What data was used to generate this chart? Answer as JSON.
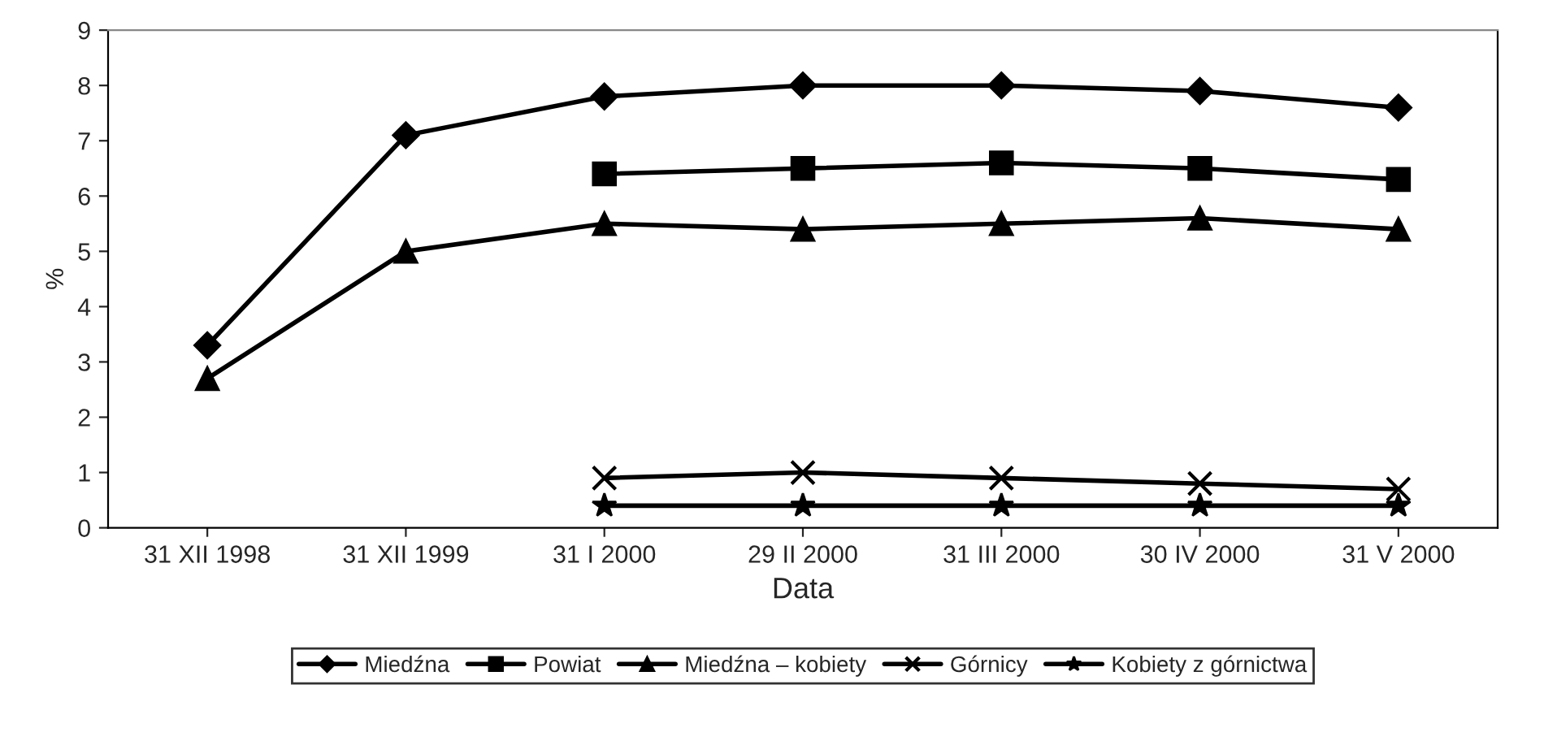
{
  "chart_data": {
    "type": "line",
    "xlabel": "Data",
    "ylabel": "%",
    "categories": [
      "31 XII 1998",
      "31 XII 1999",
      "31 I 2000",
      "29 II 2000",
      "31 III 2000",
      "30 IV 2000",
      "31 V 2000"
    ],
    "series": [
      {
        "name": "Miedźna",
        "color": "#000000",
        "marker": "diamond",
        "values": [
          3.3,
          7.1,
          7.8,
          8.0,
          8.0,
          7.9,
          7.6
        ]
      },
      {
        "name": "Powiat",
        "color": "#000000",
        "marker": "square",
        "values": [
          null,
          null,
          6.4,
          6.5,
          6.6,
          6.5,
          6.3
        ]
      },
      {
        "name": "Miedźna – kobiety",
        "color": "#000000",
        "marker": "triangle",
        "values": [
          2.7,
          5.0,
          5.5,
          5.4,
          5.5,
          5.6,
          5.4
        ]
      },
      {
        "name": "Górnicy",
        "color": "#000000",
        "marker": "cross",
        "values": [
          null,
          null,
          0.9,
          1.0,
          0.9,
          0.8,
          0.7
        ]
      },
      {
        "name": "Kobiety z górnictwa",
        "color": "#000000",
        "marker": "star",
        "values": [
          null,
          null,
          0.4,
          0.4,
          0.4,
          0.4,
          0.4
        ]
      }
    ],
    "ylim": [
      0,
      9
    ],
    "yticks": [
      0,
      1,
      2,
      3,
      4,
      5,
      6,
      7,
      8,
      9
    ],
    "grid": false,
    "legend": "bottom",
    "line_style": "solid"
  }
}
